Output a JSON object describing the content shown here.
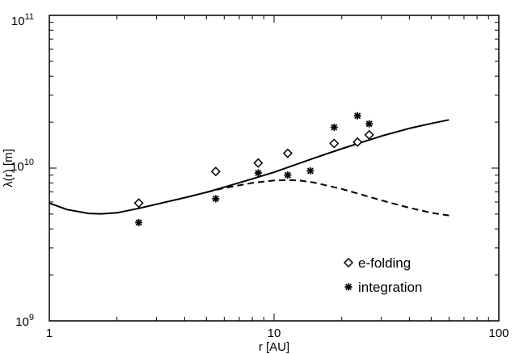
{
  "chart_data": {
    "type": "scatter",
    "title": "",
    "xlabel": "r [AU]",
    "ylabel": "λ(r) [m]",
    "xscale": "log",
    "yscale": "log",
    "xlim": [
      1,
      100
    ],
    "ylim": [
      1000000000.0,
      100000000000.0
    ],
    "x_tick_labels": [
      "1",
      "10",
      "100"
    ],
    "y_tick_labels": [
      {
        "base": "10",
        "exp": "9"
      },
      {
        "base": "10",
        "exp": "10"
      },
      {
        "base": "10",
        "exp": "11"
      }
    ],
    "grid": false,
    "legend_position": "bottom-right",
    "series": [
      {
        "name": "e-folding",
        "kind": "scatter",
        "marker": "diamond",
        "x": [
          2.5,
          5.5,
          8.5,
          11.5,
          18.5,
          23.5,
          26.5
        ],
        "y": [
          5900000000.0,
          9500000000.0,
          10800000000.0,
          12500000000.0,
          14500000000.0,
          14800000000.0,
          16500000000.0
        ]
      },
      {
        "name": "integration",
        "kind": "scatter",
        "marker": "asterisk",
        "x": [
          2.5,
          5.5,
          8.5,
          11.5,
          14.5,
          18.5,
          23.5,
          26.5
        ],
        "y": [
          4400000000.0,
          6300000000.0,
          9300000000.0,
          9000000000.0,
          9600000000.0,
          18500000000.0,
          22000000000.0,
          19500000000.0
        ]
      },
      {
        "kind": "line",
        "style": "solid",
        "x": [
          1,
          1.2,
          1.5,
          1.7,
          2,
          2.5,
          3,
          4,
          5,
          6,
          8,
          10,
          15,
          20,
          30,
          40,
          50,
          60
        ],
        "y": [
          5900000000.0,
          5350000000.0,
          5050000000.0,
          5020000000.0,
          5100000000.0,
          5450000000.0,
          5800000000.0,
          6400000000.0,
          6950000000.0,
          7500000000.0,
          8500000000.0,
          9400000000.0,
          11600000000.0,
          13400000000.0,
          16200000000.0,
          18200000000.0,
          19600000000.0,
          20700000000.0
        ]
      },
      {
        "kind": "line",
        "style": "dashed",
        "x": [
          5,
          6,
          8,
          10,
          11.5,
          13,
          15,
          20,
          25,
          30,
          40,
          50,
          60
        ],
        "y": [
          6950000000.0,
          7400000000.0,
          8000000000.0,
          8300000000.0,
          8350000000.0,
          8300000000.0,
          8050000000.0,
          7300000000.0,
          6650000000.0,
          6150000000.0,
          5500000000.0,
          5100000000.0,
          4900000000.0
        ]
      }
    ]
  }
}
